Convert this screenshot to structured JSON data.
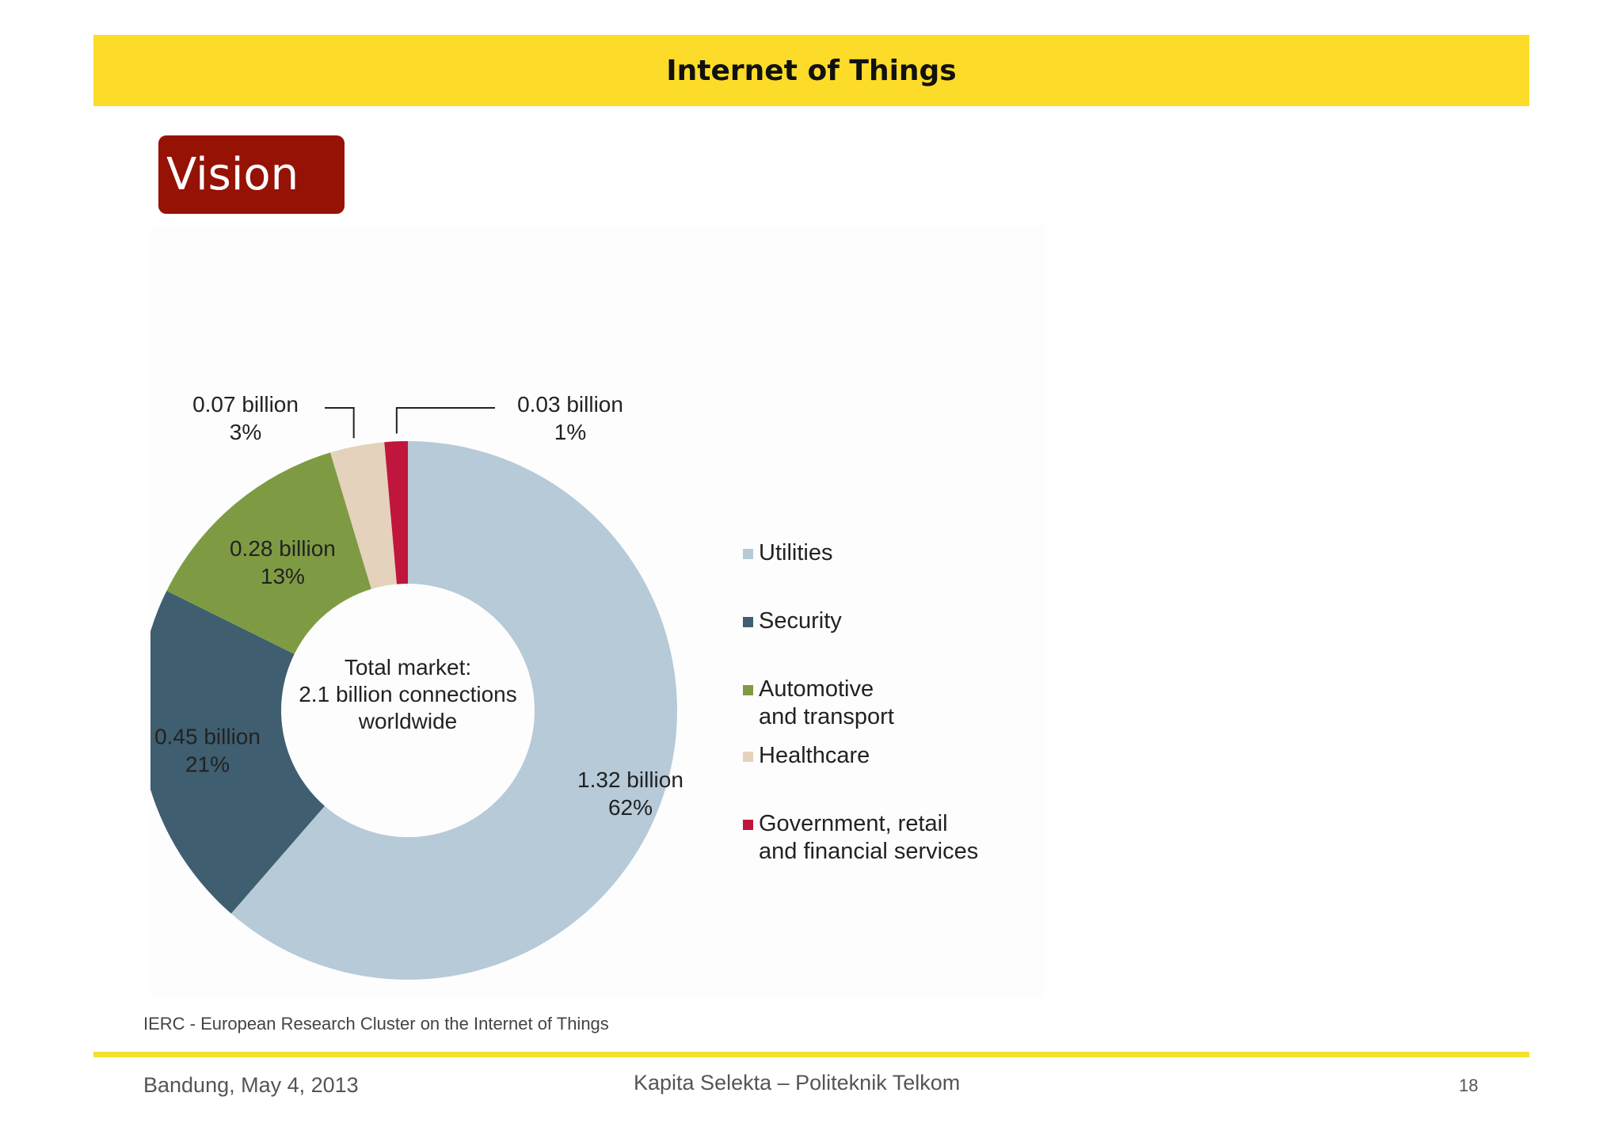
{
  "slide": {
    "title": "Internet of Things",
    "section": "Vision",
    "source": "IERC - European Research Cluster on the Internet of Things",
    "footer_left": "Bandung, May 4, 2013",
    "footer_center": "Kapita Selekta – Politeknik Telkom",
    "page_number": "18"
  },
  "colors": {
    "title_bar": "#fcdc28",
    "section_box": "#961204",
    "footer_line": "#f2e22c"
  },
  "chart_data": {
    "type": "pie",
    "variant": "donut",
    "center_label": [
      "Total market:",
      "2.1 billion connections",
      "worldwide"
    ],
    "series": [
      {
        "name": "Utilities",
        "legend": [
          "Utilities"
        ],
        "value": 1.32,
        "value_label": "1.32 billion",
        "percent_label": "62%",
        "color": "#b6cad8"
      },
      {
        "name": "Security",
        "legend": [
          "Security"
        ],
        "value": 0.45,
        "value_label": "0.45 billion",
        "percent_label": "21%",
        "color": "#3f5e70"
      },
      {
        "name": "Automotive and transport",
        "legend": [
          "Automotive",
          "and transport"
        ],
        "value": 0.28,
        "value_label": "0.28 billion",
        "percent_label": "13%",
        "color": "#7e9b43"
      },
      {
        "name": "Healthcare",
        "legend": [
          "Healthcare"
        ],
        "value": 0.07,
        "value_label": "0.07 billion",
        "percent_label": "3%",
        "color": "#e5d2bc"
      },
      {
        "name": "Government, retail and financial services",
        "legend": [
          "Government, retail",
          "and financial services"
        ],
        "value": 0.03,
        "value_label": "0.03 billion",
        "percent_label": "1%",
        "color": "#c0163d"
      }
    ],
    "legend_position": "right"
  }
}
